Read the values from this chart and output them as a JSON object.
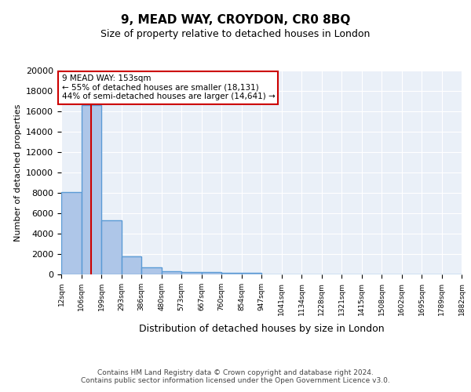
{
  "title": "9, MEAD WAY, CROYDON, CR0 8BQ",
  "subtitle": "Size of property relative to detached houses in London",
  "xlabel": "Distribution of detached houses by size in London",
  "ylabel": "Number of detached properties",
  "bin_edges": [
    12,
    106,
    199,
    293,
    386,
    480,
    573,
    667,
    760,
    854,
    947,
    1041,
    1134,
    1228,
    1321,
    1415,
    1508,
    1602,
    1695,
    1789,
    1882
  ],
  "bar_heights": [
    8100,
    16600,
    5300,
    1750,
    700,
    300,
    250,
    200,
    150,
    150,
    0,
    0,
    0,
    0,
    0,
    0,
    0,
    0,
    0,
    0
  ],
  "bar_color": "#aec6e8",
  "bar_edge_color": "#5b9bd5",
  "bar_edge_width": 1.0,
  "red_line_x": 153,
  "red_line_color": "#cc0000",
  "ylim": [
    0,
    20000
  ],
  "yticks": [
    0,
    2000,
    4000,
    6000,
    8000,
    10000,
    12000,
    14000,
    16000,
    18000,
    20000
  ],
  "background_color": "#eaf0f8",
  "grid_color": "#ffffff",
  "annotation_text": "9 MEAD WAY: 153sqm\n← 55% of detached houses are smaller (18,131)\n44% of semi-detached houses are larger (14,641) →",
  "annotation_box_color": "#ffffff",
  "annotation_box_edge_color": "#cc0000",
  "footer_text": "Contains HM Land Registry data © Crown copyright and database right 2024.\nContains public sector information licensed under the Open Government Licence v3.0.",
  "tick_labels": [
    "12sqm",
    "106sqm",
    "199sqm",
    "293sqm",
    "386sqm",
    "480sqm",
    "573sqm",
    "667sqm",
    "760sqm",
    "854sqm",
    "947sqm",
    "1041sqm",
    "1134sqm",
    "1228sqm",
    "1321sqm",
    "1415sqm",
    "1508sqm",
    "1602sqm",
    "1695sqm",
    "1789sqm",
    "1882sqm"
  ]
}
